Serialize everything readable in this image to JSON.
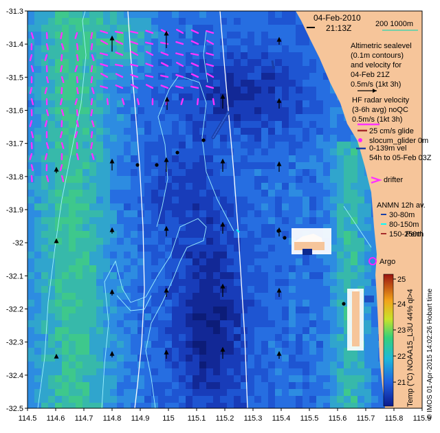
{
  "header": {
    "date": "04-Feb-2010",
    "time": "21:13Z",
    "scale_label": "200  1000m"
  },
  "altimetry": {
    "lines": [
      "Altimetric sealevel",
      "(0.1m contours)",
      "and velocity for",
      "04-Feb 21Z",
      "0.5m/s (1kt 3h)"
    ]
  },
  "hf_radar": {
    "lines": [
      "HF radar velocity",
      "(3-6h avg) noQC",
      "0.5m/s (1kt 3h)"
    ]
  },
  "glider": {
    "lines": [
      "25 cm/s glide",
      "slocum_glider 0m",
      "0-139m vel",
      "54h to 05-Feb 03Z"
    ]
  },
  "drifter": {
    "label": "drifter"
  },
  "anmn": {
    "title": "ANMN 12h av.",
    "depths": [
      "30-80m",
      "80-150m",
      "150-250m"
    ]
  },
  "places": {
    "perth": "Perth",
    "argo": "Argo"
  },
  "colorbar": {
    "label": "Temp (°C) NOAA15_L3U 44% ql>4",
    "ticks": [
      "25",
      "24",
      "23",
      "22",
      "21"
    ]
  },
  "credit": "© IMOS 01-Apr-2015 14:02:26 Hobart time",
  "axes": {
    "lon_ticks": [
      "114.5",
      "114.6",
      "114.7",
      "114.8",
      "114.9",
      "115",
      "115.1",
      "115.2",
      "115.3",
      "115.4",
      "115.5",
      "115.6",
      "115.7",
      "115.8",
      "115.9"
    ],
    "lat_ticks": [
      "-31.3",
      "-31.4",
      "-31.5",
      "-31.6",
      "-31.7",
      "-31.8",
      "-31.9",
      "-32",
      "-32.1",
      "-32.2",
      "-32.3",
      "-32.4",
      "-32.5"
    ]
  },
  "colors": {
    "land": "#f6c59a",
    "sst_cold": "#0a1a7a",
    "sst_mid": "#2a6cd6",
    "sst_warm": "#3ec79b",
    "radar_vectors": "#ff33ff",
    "contours": "#9ff3ff",
    "isobath": "#ffffff"
  }
}
